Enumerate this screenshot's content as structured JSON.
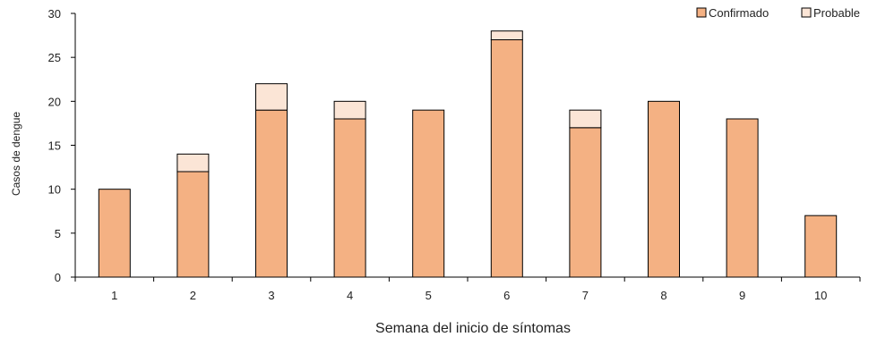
{
  "chart_data": {
    "type": "bar",
    "stacked": true,
    "categories": [
      "1",
      "2",
      "3",
      "4",
      "5",
      "6",
      "7",
      "8",
      "9",
      "10"
    ],
    "series": [
      {
        "name": "Confirmado",
        "values": [
          10,
          12,
          19,
          18,
          19,
          27,
          17,
          20,
          18,
          7
        ],
        "color": "#f4b183"
      },
      {
        "name": "Probable",
        "values": [
          0,
          2,
          3,
          2,
          0,
          1,
          2,
          0,
          0,
          0
        ],
        "color": "#fbe5d6"
      }
    ],
    "xlabel": "Semana del inicio de síntomas",
    "ylabel": "Casos de dengue",
    "ylim": [
      0,
      30
    ],
    "yticks": [
      0,
      5,
      10,
      15,
      20,
      25,
      30
    ],
    "grid": false,
    "legend_position": "top-right"
  }
}
